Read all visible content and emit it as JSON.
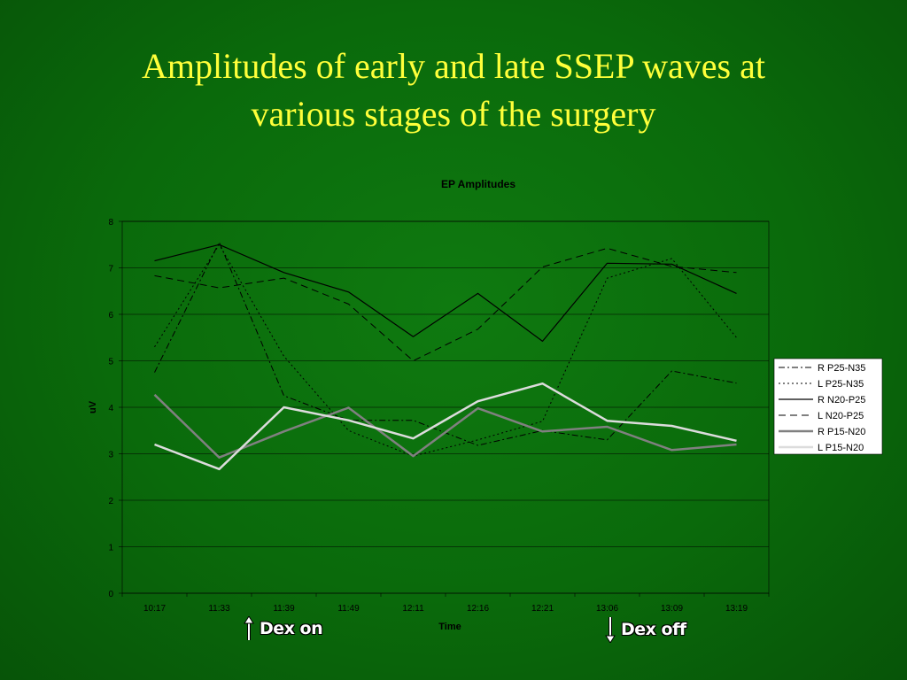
{
  "slide": {
    "title_line1": "Amplitudes of early and late SSEP waves at",
    "title_line2": "various stages of the surgery"
  },
  "annotations": {
    "dex_on": "Dex on",
    "dex_off": "Dex off"
  },
  "colors": {
    "background": "#0a6a0b",
    "title": "#ffff3a",
    "grid": "#000000"
  },
  "chart_data": {
    "type": "line",
    "title": "EP Amplitudes",
    "xlabel": "Time",
    "ylabel": "uV",
    "ylim": [
      0,
      8
    ],
    "yticks": [
      0,
      1,
      2,
      3,
      4,
      5,
      6,
      7,
      8
    ],
    "grid": true,
    "legend_position": "right",
    "categories": [
      "10:17",
      "11:33",
      "11:39",
      "11:49",
      "12:11",
      "12:16",
      "12:21",
      "13:06",
      "13:09",
      "13:19"
    ],
    "series": [
      {
        "name": "R P25-N35",
        "style": "dashdot",
        "color": "#000000",
        "values": [
          4.75,
          7.55,
          4.25,
          3.72,
          3.72,
          3.18,
          3.5,
          3.3,
          4.78,
          4.52
        ]
      },
      {
        "name": "L P25-N35",
        "style": "dotted",
        "color": "#000000",
        "values": [
          5.3,
          7.5,
          5.1,
          3.5,
          2.95,
          3.3,
          3.7,
          6.78,
          7.2,
          5.5
        ]
      },
      {
        "name": "R N20-P25",
        "style": "solid",
        "color": "#000000",
        "values": [
          7.15,
          7.5,
          6.9,
          6.48,
          5.52,
          6.45,
          5.42,
          7.1,
          7.08,
          6.45
        ]
      },
      {
        "name": "L N20-P25",
        "style": "dashed",
        "color": "#000000",
        "values": [
          6.83,
          6.57,
          6.78,
          6.22,
          5.0,
          5.68,
          7.02,
          7.42,
          7.03,
          6.9
        ]
      },
      {
        "name": "R P15-N20",
        "style": "solid-thick",
        "color": "#808080",
        "values": [
          4.27,
          2.92,
          3.48,
          3.99,
          2.95,
          3.98,
          3.48,
          3.58,
          3.08,
          3.2
        ]
      },
      {
        "name": "L P15-N20",
        "style": "solid-light",
        "color": "#dcdcdc",
        "values": [
          3.2,
          2.67,
          4.0,
          3.72,
          3.33,
          4.13,
          4.51,
          3.71,
          3.6,
          3.28
        ]
      }
    ]
  }
}
